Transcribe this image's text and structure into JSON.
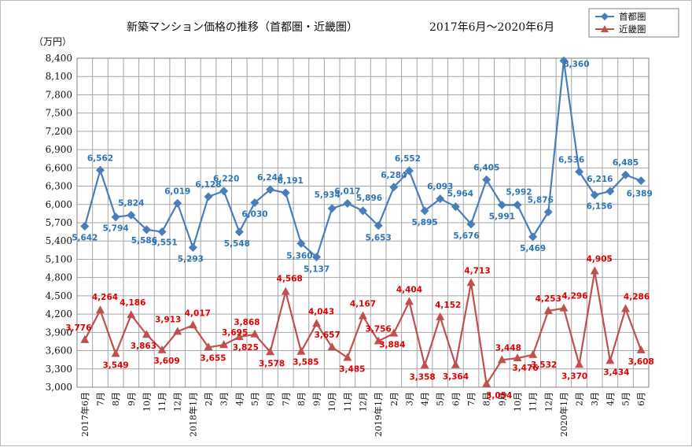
{
  "chart_data": {
    "type": "line",
    "title": "新築マンション価格の推移（首都圏・近畿圏）",
    "subtitle": "2017年6月～2020年6月",
    "ylabel": "（万円）",
    "xlabel": "",
    "ylim": [
      3000,
      8400
    ],
    "yticks": [
      "3,000",
      "3,300",
      "3,600",
      "3,900",
      "4,200",
      "4,500",
      "4,800",
      "5,100",
      "5,400",
      "5,700",
      "6,000",
      "6,300",
      "6,600",
      "6,900",
      "7,200",
      "7,500",
      "7,800",
      "8,100",
      "8,400"
    ],
    "grid": true,
    "legend_position": "top-right",
    "categories": [
      "2017年6月",
      "7月",
      "8月",
      "9月",
      "10月",
      "11月",
      "12月",
      "2018年1月",
      "2月",
      "3月",
      "4月",
      "5月",
      "6月",
      "7月",
      "8月",
      "9月",
      "10月",
      "11月",
      "12月",
      "2019年1月",
      "2月",
      "3月",
      "4月",
      "5月",
      "6月",
      "7月",
      "8月",
      "9月",
      "10月",
      "11月",
      "12月",
      "2020年1月",
      "2月",
      "3月",
      "4月",
      "5月",
      "6月"
    ],
    "series": [
      {
        "name": "首都圏",
        "color": "#4a7ebb",
        "marker": "diamond",
        "values": [
          5642,
          6562,
          5794,
          5824,
          5586,
          5551,
          6019,
          5293,
          6128,
          6220,
          5548,
          6030,
          6244,
          6191,
          5360,
          5137,
          5934,
          6017,
          5896,
          5653,
          6284,
          6552,
          5895,
          6093,
          5964,
          5676,
          6405,
          5991,
          5992,
          5469,
          5876,
          8360,
          6536,
          6156,
          6216,
          6485,
          6389
        ],
        "labels": [
          "5,642",
          "6,562",
          "5,794",
          "5,824",
          "5,586",
          "5,551",
          "6,019",
          "5,293",
          "6,128",
          "6,220",
          "5,548",
          "6,030",
          "6,244",
          "6,191",
          "5,360",
          "5,137",
          "5,934",
          "6,017",
          "5,896",
          "5,653",
          "6,284",
          "6,552",
          "5,895",
          "6,093",
          "5,964",
          "5,676",
          "6,405",
          "5,991",
          "5,992",
          "5,469",
          "5,876",
          "8,360",
          "6,536",
          "6,156",
          "6,216",
          "6,485",
          "6,389"
        ]
      },
      {
        "name": "近畿圏",
        "color": "#c0504d",
        "marker": "triangle",
        "values": [
          3776,
          4264,
          3549,
          4186,
          3863,
          3609,
          3913,
          4017,
          3655,
          3695,
          3825,
          3868,
          3578,
          4568,
          3585,
          4043,
          3657,
          3485,
          4167,
          3756,
          3884,
          4404,
          3358,
          4152,
          3364,
          4713,
          3054,
          3448,
          3476,
          3532,
          4253,
          4296,
          3370,
          4905,
          3434,
          4286,
          3608
        ],
        "labels": [
          "3,776",
          "4,264",
          "3,549",
          "4,186",
          "3,863",
          "3,609",
          "3,913",
          "4,017",
          "3,655",
          "3,695",
          "3,825",
          "3,868",
          "3,578",
          "4,568",
          "3,585",
          "4,043",
          "3,657",
          "3,485",
          "4,167",
          "3,756",
          "3,884",
          "4,404",
          "3,358",
          "4,152",
          "3,364",
          "4,713",
          "3,054",
          "3,448",
          "3,476",
          "3,532",
          "4,253",
          "4,296",
          "3,370",
          "4,905",
          "3,434",
          "4,286",
          "3,608"
        ]
      }
    ]
  }
}
